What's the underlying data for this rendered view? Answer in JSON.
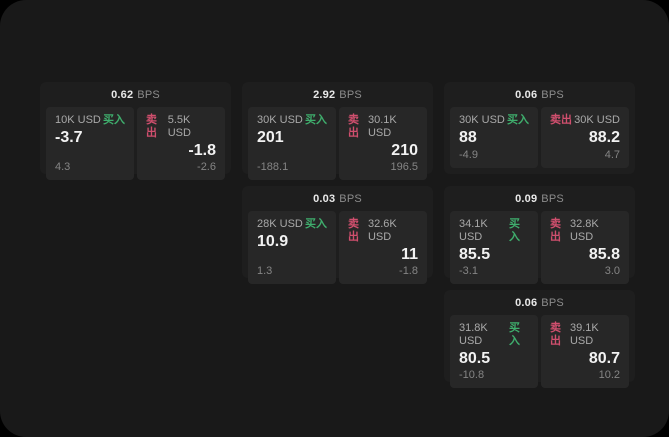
{
  "labels": {
    "bps_unit": "BPS",
    "buy": "买入",
    "sell": "卖出"
  },
  "colors": {
    "buy": "#3fae6d",
    "sell": "#d04f6e",
    "page_bg": "#191919",
    "card_bg": "#1e1e1e",
    "panel_bg": "#272727"
  },
  "cards": [
    {
      "row": 1,
      "col": 1,
      "bps": "0.62",
      "buy": {
        "size": "10K USD",
        "value": "-3.7",
        "sub": "4.3"
      },
      "sell": {
        "size": "5.5K USD",
        "value": "-1.8",
        "sub": "-2.6"
      }
    },
    {
      "row": 1,
      "col": 2,
      "bps": "2.92",
      "buy": {
        "size": "30K USD",
        "value": "201",
        "sub": "-188.1"
      },
      "sell": {
        "size": "30.1K USD",
        "value": "210",
        "sub": "196.5"
      }
    },
    {
      "row": 1,
      "col": 3,
      "bps": "0.06",
      "buy": {
        "size": "30K USD",
        "value": "88",
        "sub": "-4.9"
      },
      "sell": {
        "size": "30K USD",
        "value": "88.2",
        "sub": "4.7"
      }
    },
    {
      "row": 2,
      "col": 2,
      "bps": "0.03",
      "buy": {
        "size": "28K USD",
        "value": "10.9",
        "sub": "1.3"
      },
      "sell": {
        "size": "32.6K USD",
        "value": "11",
        "sub": "-1.8"
      }
    },
    {
      "row": 2,
      "col": 3,
      "bps": "0.09",
      "buy": {
        "size": "34.1K USD",
        "value": "85.5",
        "sub": "-3.1"
      },
      "sell": {
        "size": "32.8K USD",
        "value": "85.8",
        "sub": "3.0"
      }
    },
    {
      "row": 3,
      "col": 3,
      "bps": "0.06",
      "buy": {
        "size": "31.8K USD",
        "value": "80.5",
        "sub": "-10.8"
      },
      "sell": {
        "size": "39.1K USD",
        "value": "80.7",
        "sub": "10.2"
      }
    }
  ]
}
